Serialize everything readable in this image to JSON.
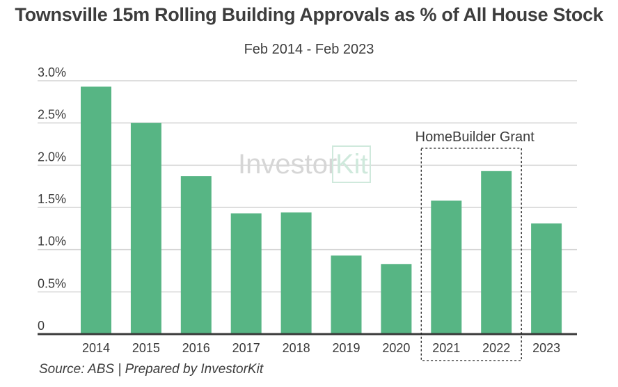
{
  "chart_data": {
    "type": "bar",
    "title": "Townsville 15m Rolling Building Approvals as % of All House Stock",
    "subtitle": "Feb 2014 - Feb 2023",
    "categories": [
      "2014",
      "2015",
      "2016",
      "2017",
      "2018",
      "2019",
      "2020",
      "2021",
      "2022",
      "2023"
    ],
    "values": [
      2.93,
      2.5,
      1.87,
      1.43,
      1.44,
      0.93,
      0.83,
      1.58,
      1.93,
      1.31
    ],
    "yticks": [
      "0",
      "0.5%",
      "1.0%",
      "1.5%",
      "2.0%",
      "2.5%",
      "3.0%"
    ],
    "ylim": [
      0,
      3.0
    ],
    "grid": true,
    "bar_color": "#57b584",
    "annotation": {
      "text": "HomeBuilder Grant",
      "categories": [
        "2021",
        "2022"
      ]
    },
    "source": "Source: ABS | Prepared by InvestorKit"
  },
  "watermark": {
    "text": "Investor",
    "kit_text": "Kit"
  }
}
